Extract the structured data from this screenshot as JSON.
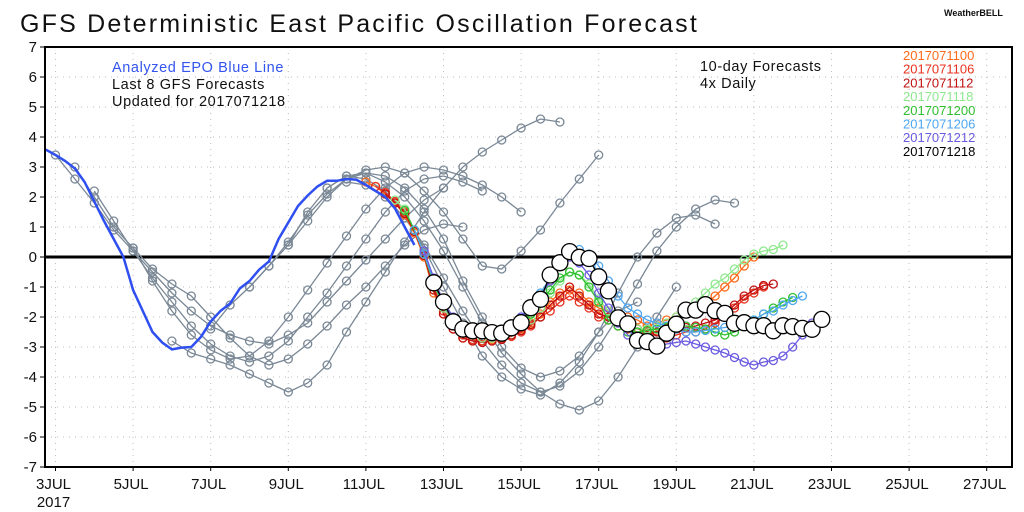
{
  "title": "GFS Deterministic East Pacific Oscillation Forecast",
  "brand": "WeatherBELL",
  "annotations": {
    "analyzed": "Analyzed EPO Blue Line",
    "last8": "Last 8 GFS Forecasts",
    "updated": "Updated for 2017071218",
    "tenday": "10-day Forecasts",
    "daily": "4x Daily"
  },
  "colors": {
    "analyzed": "#2f4ff0",
    "older": "#7a8896",
    "zero_line": "#000000"
  },
  "chart_data": {
    "type": "line",
    "title": "GFS Deterministic East Pacific Oscillation Forecast",
    "xlabel": "",
    "ylabel": "",
    "ylim": [
      -7,
      7
    ],
    "xlim": [
      "2017-07-02 18Z",
      "2017-07-27 12Z"
    ],
    "yticks": [
      "7",
      "6",
      "5",
      "4",
      "3",
      "2",
      "1",
      "0",
      "-1",
      "-2",
      "-3",
      "-4",
      "-5",
      "-6",
      "-7"
    ],
    "xticks": [
      {
        "label": "3JUL",
        "day": 3
      },
      {
        "label": "5JUL",
        "day": 5
      },
      {
        "label": "7JUL",
        "day": 7
      },
      {
        "label": "9JUL",
        "day": 9
      },
      {
        "label": "11JUL",
        "day": 11
      },
      {
        "label": "13JUL",
        "day": 13
      },
      {
        "label": "15JUL",
        "day": 15
      },
      {
        "label": "17JUL",
        "day": 17
      },
      {
        "label": "19JUL",
        "day": 19
      },
      {
        "label": "21JUL",
        "day": 21
      },
      {
        "label": "23JUL",
        "day": 23
      },
      {
        "label": "25JUL",
        "day": 25
      },
      {
        "label": "27JUL",
        "day": 27
      }
    ],
    "xyear": "2017",
    "grid": true,
    "legend_placement": "top-right",
    "analyzed": {
      "start": "2017070218",
      "step_hours": 6,
      "values": [
        3.58,
        3.4,
        3.2,
        2.95,
        2.5,
        1.85,
        1.2,
        0.6,
        0.0,
        -1.1,
        -1.8,
        -2.5,
        -2.85,
        -3.08,
        -3.02,
        -3.0,
        -2.66,
        -2.15,
        -1.8,
        -1.55,
        -1.05,
        -0.8,
        -0.42,
        -0.15,
        0.6,
        1.15,
        1.7,
        2.05,
        2.35,
        2.54,
        2.54,
        2.6,
        2.58,
        2.4,
        2.2,
        2.0,
        1.62,
        1.0,
        0.4
      ]
    },
    "forecasts": [
      {
        "name": "2017071100",
        "color": "#ff6a1a",
        "start": "2017071100",
        "step_hours": 6,
        "values": [
          2.5,
          2.35,
          2.1,
          1.8,
          1.4,
          0.8,
          0.0,
          -1.2,
          -1.9,
          -2.4,
          -2.7,
          -2.8,
          -2.8,
          -2.75,
          -2.7,
          -2.6,
          -2.4,
          -2.2,
          -1.9,
          -1.5,
          -1.2,
          -1.1,
          -1.2,
          -1.5,
          -1.7,
          -1.8,
          -1.9,
          -2.0,
          -2.1,
          -2.3,
          -2.2,
          -2.1,
          -2.0,
          -1.9,
          -1.8,
          -1.6,
          -1.3,
          -1.0,
          -0.7,
          -0.3,
          0.0
        ]
      },
      {
        "name": "2017071106",
        "color": "#e8321e",
        "start": "2017071106",
        "step_hours": 6,
        "values": [
          2.35,
          2.15,
          1.85,
          1.5,
          0.9,
          0.1,
          -1.0,
          -1.8,
          -2.3,
          -2.6,
          -2.75,
          -2.8,
          -2.8,
          -2.7,
          -2.65,
          -2.5,
          -2.3,
          -2.0,
          -1.8,
          -1.5,
          -1.3,
          -1.5,
          -1.7,
          -2.0,
          -2.1,
          -2.3,
          -2.4,
          -2.5,
          -2.5,
          -2.6,
          -2.7,
          -2.6,
          -2.5,
          -2.5,
          -2.4,
          -2.2,
          -2.0,
          -1.7,
          -1.4,
          -1.2,
          -1.0
        ]
      },
      {
        "name": "2017071112",
        "color": "#c01010",
        "start": "2017071112",
        "step_hours": 6,
        "values": [
          2.1,
          1.8,
          1.45,
          0.85,
          0.05,
          -1.1,
          -1.9,
          -2.4,
          -2.7,
          -2.8,
          -2.85,
          -2.8,
          -2.75,
          -2.6,
          -2.45,
          -2.25,
          -2.0,
          -1.6,
          -1.3,
          -1.0,
          -1.3,
          -1.6,
          -1.9,
          -2.0,
          -2.2,
          -2.3,
          -2.4,
          -2.5,
          -2.5,
          -2.45,
          -2.4,
          -2.35,
          -2.3,
          -2.2,
          -2.1,
          -1.9,
          -1.6,
          -1.3,
          -1.1,
          -0.95,
          -0.9
        ]
      },
      {
        "name": "2017071118",
        "color": "#8ee88e",
        "start": "2017071118",
        "step_hours": 6,
        "values": [
          1.9,
          1.6,
          0.9,
          0.1,
          -0.9,
          -1.7,
          -2.2,
          -2.5,
          -2.6,
          -2.7,
          -2.7,
          -2.6,
          -2.5,
          -2.3,
          -2.1,
          -1.7,
          -1.2,
          -0.8,
          -0.5,
          -0.6,
          -0.9,
          -1.4,
          -1.8,
          -2.1,
          -2.3,
          -2.4,
          -2.4,
          -2.3,
          -2.2,
          -2.0,
          -1.7,
          -1.5,
          -1.2,
          -0.9,
          -0.7,
          -0.4,
          -0.1,
          0.1,
          0.2,
          0.25,
          0.4
        ]
      },
      {
        "name": "2017071200",
        "color": "#2fbf2f",
        "start": "2017071200",
        "step_hours": 6,
        "values": [
          1.55,
          0.9,
          0.1,
          -0.9,
          -1.6,
          -2.1,
          -2.4,
          -2.55,
          -2.6,
          -2.6,
          -2.5,
          -2.4,
          -2.2,
          -1.9,
          -1.5,
          -1.1,
          -0.7,
          -0.5,
          -0.6,
          -1.0,
          -1.5,
          -2.1,
          -2.3,
          -2.5,
          -2.5,
          -2.45,
          -2.4,
          -2.35,
          -2.3,
          -2.3,
          -2.35,
          -2.4,
          -2.5,
          -2.6,
          -2.5,
          -2.3,
          -2.1,
          -1.9,
          -1.7,
          -1.5,
          -1.35
        ]
      },
      {
        "name": "2017071206",
        "color": "#4ea6f0",
        "start": "2017071206",
        "step_hours": 6,
        "values": [
          0.9,
          0.1,
          -0.8,
          -1.6,
          -2.1,
          -2.4,
          -2.5,
          -2.6,
          -2.55,
          -2.5,
          -2.3,
          -2.0,
          -1.6,
          -1.2,
          -0.7,
          -0.2,
          0.2,
          0.25,
          0.1,
          -0.3,
          -0.8,
          -1.3,
          -1.7,
          -1.9,
          -2.1,
          -2.2,
          -2.3,
          -2.4,
          -2.5,
          -2.5,
          -2.45,
          -2.4,
          -2.35,
          -2.3,
          -2.2,
          -2.1,
          -1.9,
          -1.8,
          -1.6,
          -1.45,
          -1.3
        ]
      },
      {
        "name": "2017071212",
        "color": "#6a5ae0",
        "start": "2017071212",
        "step_hours": 6,
        "values": [
          0.2,
          -0.7,
          -1.5,
          -2.0,
          -2.3,
          -2.45,
          -2.5,
          -2.5,
          -2.45,
          -2.3,
          -2.0,
          -1.7,
          -1.3,
          -0.8,
          -0.3,
          0.0,
          -0.2,
          -0.6,
          -1.2,
          -1.7,
          -2.2,
          -2.6,
          -2.8,
          -2.9,
          -2.95,
          -2.9,
          -2.85,
          -2.8,
          -2.9,
          -3.0,
          -3.1,
          -3.2,
          -3.35,
          -3.5,
          -3.6,
          -3.5,
          -3.45,
          -3.3,
          -3.0,
          -2.6,
          -2.2
        ]
      },
      {
        "name": "2017071218",
        "color": "#000000",
        "start": "2017071218",
        "step_hours": 6,
        "values": [
          -0.86,
          -1.5,
          -2.16,
          -2.4,
          -2.46,
          -2.46,
          -2.52,
          -2.54,
          -2.36,
          -2.19,
          -1.69,
          -1.41,
          -0.6,
          -0.19,
          0.18,
          -0.01,
          -0.05,
          -0.66,
          -1.13,
          -2.03,
          -2.23,
          -2.78,
          -2.82,
          -2.97,
          -2.54,
          -2.24,
          -1.77,
          -1.77,
          -1.59,
          -1.79,
          -1.88,
          -2.21,
          -2.19,
          -2.29,
          -2.29,
          -2.46,
          -2.29,
          -2.32,
          -2.38,
          -2.41,
          -2.08
        ]
      }
    ],
    "older_forecasts": [
      {
        "start": "2017070300",
        "step_hours": 12,
        "values": [
          3.4,
          2.6,
          1.8,
          0.9,
          0.2,
          -0.5,
          -1.2,
          -1.8,
          -2.3,
          -2.6,
          -2.8,
          -2.9,
          -2.6,
          -2.2,
          -1.5,
          -0.8,
          -0.1,
          0.6,
          1.3,
          1.9,
          2.3
        ]
      },
      {
        "start": "2017070312",
        "step_hours": 12,
        "values": [
          3.0,
          2.0,
          1.0,
          0.3,
          -0.4,
          -0.9,
          -1.3,
          -2.0,
          -2.7,
          -3.3,
          -3.6,
          -3.4,
          -2.9,
          -2.3,
          -1.6,
          -1.0,
          -0.3,
          0.4,
          0.9,
          1.1,
          1.0
        ]
      },
      {
        "start": "2017070400",
        "step_hours": 12,
        "values": [
          2.2,
          1.2,
          0.2,
          -0.7,
          -1.5,
          -2.3,
          -2.9,
          -3.3,
          -3.5,
          -3.3,
          -2.8,
          -2.0,
          -1.2,
          -0.3,
          0.6,
          1.5,
          2.2,
          2.6,
          2.7,
          2.5,
          2.2
        ]
      },
      {
        "start": "2017070500",
        "step_hours": 12,
        "values": [
          0.3,
          -0.8,
          -1.8,
          -2.6,
          -3.1,
          -3.4,
          -3.3,
          -2.8,
          -2.0,
          -1.1,
          -0.2,
          0.7,
          1.6,
          2.3,
          2.8,
          3.0,
          2.9,
          2.7,
          2.4,
          2.0,
          1.5
        ]
      },
      {
        "start": "2017070600",
        "step_hours": 12,
        "values": [
          -2.8,
          -3.2,
          -3.4,
          -3.6,
          -3.9,
          -4.2,
          -4.5,
          -4.2,
          -3.6,
          -2.5,
          -1.5,
          -0.5,
          0.5,
          1.5,
          2.3,
          3.0,
          3.5,
          3.9,
          4.3,
          4.6,
          4.5
        ]
      },
      {
        "start": "2017070700",
        "step_hours": 12,
        "values": [
          -2.4,
          -1.6,
          -1.0,
          -0.3,
          0.4,
          1.2,
          2.0,
          2.6,
          2.9,
          3.0,
          2.8,
          2.2,
          1.5,
          0.6,
          -0.3,
          -0.4,
          0.2,
          0.9,
          1.8,
          2.6,
          3.4
        ]
      },
      {
        "start": "2017070800",
        "step_hours": 12,
        "values": [
          -1.0,
          -0.3,
          0.5,
          1.4,
          2.1,
          2.6,
          2.8,
          2.7,
          2.3,
          1.6,
          0.6,
          -0.8,
          -2.0,
          -3.0,
          -3.7,
          -4.0,
          -3.8,
          -3.3,
          -2.5,
          -1.8,
          -1.5
        ]
      },
      {
        "start": "2017070900",
        "step_hours": 12,
        "values": [
          0.4,
          1.5,
          2.3,
          2.7,
          2.8,
          2.5,
          2.0,
          1.2,
          0.2,
          -1.0,
          -2.2,
          -3.2,
          -3.9,
          -4.5,
          -4.9,
          -5.1,
          -4.8,
          -4.0,
          -3.0,
          -2.0,
          -1.0
        ]
      },
      {
        "start": "2017071000",
        "step_hours": 12,
        "values": [
          2.3,
          2.7,
          2.6,
          2.2,
          1.4,
          0.3,
          -1.0,
          -2.2,
          -3.3,
          -4.0,
          -4.4,
          -4.6,
          -4.2,
          -3.5,
          -2.5,
          -1.2,
          0.0,
          0.8,
          1.3,
          1.4,
          1.1
        ]
      },
      {
        "start": "2017071012",
        "step_hours": 12,
        "values": [
          2.5,
          2.4,
          2.0,
          1.3,
          0.4,
          -0.7,
          -1.8,
          -2.8,
          -3.6,
          -4.2,
          -4.5,
          -4.3,
          -3.8,
          -3.0,
          -2.0,
          -0.9,
          0.2,
          1.0,
          1.6,
          1.9,
          1.8
        ]
      }
    ]
  }
}
